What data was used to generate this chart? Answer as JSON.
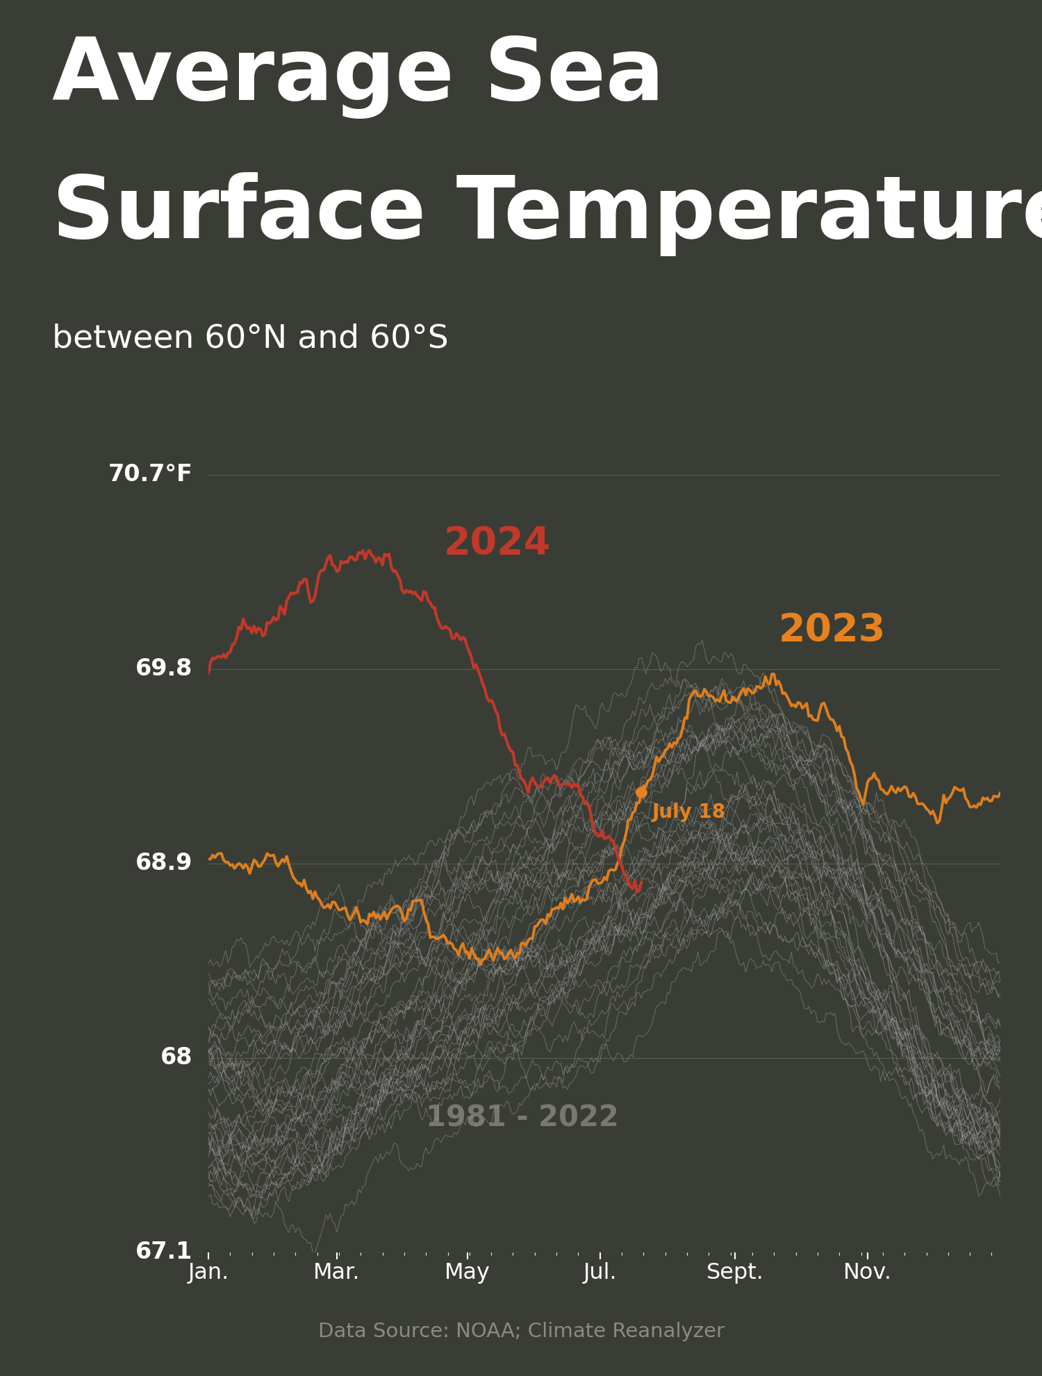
{
  "title_line1": "Average Sea",
  "title_line2": "Surface Temperature",
  "subtitle": "between 60°N and 60°S",
  "background_color": "#3a3d35",
  "text_color": "#ffffff",
  "grid_color": "#6a6e60",
  "yticks": [
    67.1,
    68.0,
    68.9,
    69.8,
    70.7
  ],
  "ytick_labels": [
    "67.1",
    "68",
    "68.9",
    "69.8",
    "70.7°F"
  ],
  "year_2023_color": "#e8821e",
  "year_2024_color": "#c0392b",
  "historical_color": "#aaaaaa",
  "source_text": "Data Source: NOAA; Climate Reanalyzer",
  "annotation_date": "July 18",
  "annotation_day_idx": 199
}
